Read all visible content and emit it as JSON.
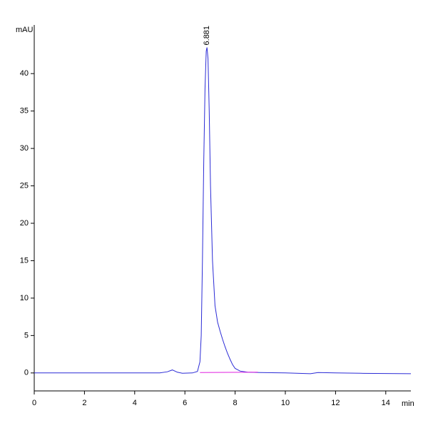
{
  "chart_data": {
    "type": "line",
    "ylabel": "mAU",
    "xlabel": "min",
    "xlim": [
      0,
      15
    ],
    "ylim": [
      -2.4,
      46.5
    ],
    "xticks": [
      0,
      2,
      4,
      6,
      8,
      10,
      12,
      14
    ],
    "yticks": [
      0,
      5,
      10,
      15,
      20,
      25,
      30,
      35,
      40
    ],
    "grid": false,
    "series": [
      {
        "color": "#2b2bd6",
        "x": [
          0,
          5.0,
          5.3,
          5.5,
          5.7,
          5.9,
          6.3,
          6.5,
          6.6,
          6.65,
          6.7,
          6.75,
          6.8,
          6.85,
          6.881,
          6.92,
          6.97,
          7.02,
          7.1,
          7.2,
          7.3,
          7.4,
          7.5,
          7.6,
          7.7,
          7.8,
          7.9,
          8.0,
          8.2,
          8.5,
          9.0,
          10.0,
          11.0,
          11.3,
          12.0,
          13.0,
          15.0
        ],
        "values": [
          0,
          0,
          0.15,
          0.4,
          0.1,
          -0.05,
          0,
          0.2,
          1.5,
          5,
          15,
          28,
          38,
          43,
          43.5,
          42,
          35,
          25,
          15,
          9,
          6.8,
          5.6,
          4.5,
          3.5,
          2.6,
          1.8,
          1.1,
          0.6,
          0.25,
          0.1,
          0.05,
          0,
          -0.1,
          0.05,
          0,
          -0.05,
          -0.1
        ]
      },
      {
        "color": "#e020e0",
        "x": [
          6.6,
          8.9
        ],
        "values": [
          0.05,
          0.1
        ]
      }
    ],
    "annotations": [
      {
        "text": "6.881",
        "x": 6.881,
        "y": 43.5
      }
    ]
  }
}
